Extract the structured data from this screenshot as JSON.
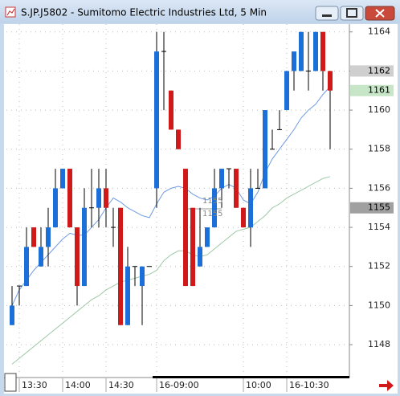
{
  "chart_data": {
    "type": "candlestick",
    "title": "S.JP.J5802 - Sumitomo Electric Industries Ltd, 5 Min",
    "categories": [
      null,
      "13:30",
      null,
      null,
      null,
      null,
      null,
      "14:00",
      null,
      null,
      null,
      null,
      null,
      "14:30",
      null,
      null,
      null,
      null,
      null,
      null,
      "16-09:00",
      null,
      null,
      null,
      null,
      null,
      null,
      null,
      null,
      null,
      null,
      null,
      "10:00",
      null,
      null,
      null,
      null,
      null,
      "16-10:30",
      null,
      null,
      null,
      null,
      null,
      null
    ],
    "open": [
      1149,
      1151,
      1151,
      1154,
      1152,
      1153,
      1154,
      1156,
      1157,
      1154,
      1151,
      1155,
      1155,
      1156,
      1154,
      1155,
      1149,
      1152,
      1151,
      1152,
      1156,
      1163,
      1161,
      1159,
      1157,
      1155,
      1152,
      1153,
      1154,
      1156,
      1157,
      1157,
      1155,
      1154,
      1156,
      1156,
      1158,
      1159,
      1160,
      1162,
      1162,
      1162,
      1162,
      1164,
      1162
    ],
    "high": [
      1151,
      1151,
      1154,
      1154,
      1154,
      1155,
      1157,
      1157,
      1157,
      1154,
      1156,
      1157,
      1157,
      1157,
      1155,
      1155,
      1153,
      1152,
      1152,
      1152,
      1164,
      1164,
      1161,
      1159,
      1157,
      1155,
      1155,
      1154,
      1157,
      1157,
      1157,
      1157,
      1155,
      1157,
      1157,
      1160,
      1159,
      1160,
      1162,
      1163,
      1164,
      1164,
      1164,
      1164,
      1162
    ],
    "low": [
      1149,
      1150,
      1151,
      1153,
      1152,
      1152,
      1154,
      1156,
      1154,
      1150,
      1151,
      1154,
      1154,
      1154,
      1153,
      1149,
      1149,
      1151,
      1149,
      1152,
      1155,
      1160,
      1159,
      1158,
      1151,
      1151,
      1152,
      1153,
      1154,
      1155,
      1156,
      1155,
      1154,
      1153,
      1156,
      1156,
      1158,
      1159,
      1160,
      1161,
      1162,
      1161,
      1162,
      1161,
      1158
    ],
    "close": [
      1150,
      1151,
      1153,
      1153,
      1153,
      1154,
      1156,
      1157,
      1154,
      1151,
      1155,
      1155,
      1156,
      1155,
      1154,
      1149,
      1152,
      1152,
      1152,
      1152,
      1163,
      1163,
      1159,
      1158,
      1151,
      1151,
      1153,
      1154,
      1156,
      1157,
      1157,
      1155,
      1154,
      1156,
      1156,
      1160,
      1158,
      1159,
      1162,
      1163,
      1164,
      1162,
      1164,
      1162,
      1161
    ],
    "up_color": "#1c6fd8",
    "down_color": "#d01a1a",
    "series": [
      {
        "color": "#6f9be0",
        "values": [
          1150,
          1150.8,
          1151.3,
          1151.8,
          1152.2,
          1152.6,
          1153,
          1153.4,
          1153.7,
          1153.6,
          1153.6,
          1154,
          1154.4,
          1155,
          1155.5,
          1155.3,
          1155,
          1154.8,
          1154.6,
          1154.5,
          1155.2,
          1155.8,
          1156,
          1156.1,
          1156,
          1155.7,
          1155.5,
          1155.4,
          1155.6,
          1156,
          1156.2,
          1156,
          1155.4,
          1155.2,
          1155.8,
          1156.8,
          1157.5,
          1158,
          1158.5,
          1159,
          1159.6,
          1160,
          1160.3,
          1160.8,
          1161.2
        ]
      },
      {
        "color": "#9fc8a8",
        "values": [
          1147,
          1147.3,
          1147.6,
          1147.9,
          1148.2,
          1148.5,
          1148.8,
          1149.1,
          1149.4,
          1149.7,
          1150,
          1150.3,
          1150.5,
          1150.8,
          1151,
          1151.2,
          1151.3,
          1151.4,
          1151.5,
          1151.6,
          1151.8,
          1152.3,
          1152.6,
          1152.8,
          1152.8,
          1152.6,
          1152.5,
          1152.6,
          1152.9,
          1153.2,
          1153.5,
          1153.8,
          1153.9,
          1154,
          1154.3,
          1154.6,
          1155,
          1155.2,
          1155.5,
          1155.7,
          1155.9,
          1156.1,
          1156.3,
          1156.5,
          1156.6
        ]
      }
    ],
    "ylim": [
      1146.4,
      1164.4
    ],
    "yticks": [
      1148,
      1150,
      1152,
      1154,
      1156,
      1158,
      1160,
      1162,
      1164
    ],
    "grid": true,
    "markers": [
      {
        "value": 1162,
        "color": "#cfcfcf"
      },
      {
        "value": 1161,
        "color": "#c7e6c7"
      },
      {
        "value": 1155,
        "color": "#a0a0a0"
      }
    ],
    "annotations": [
      "1155",
      "1155"
    ]
  }
}
